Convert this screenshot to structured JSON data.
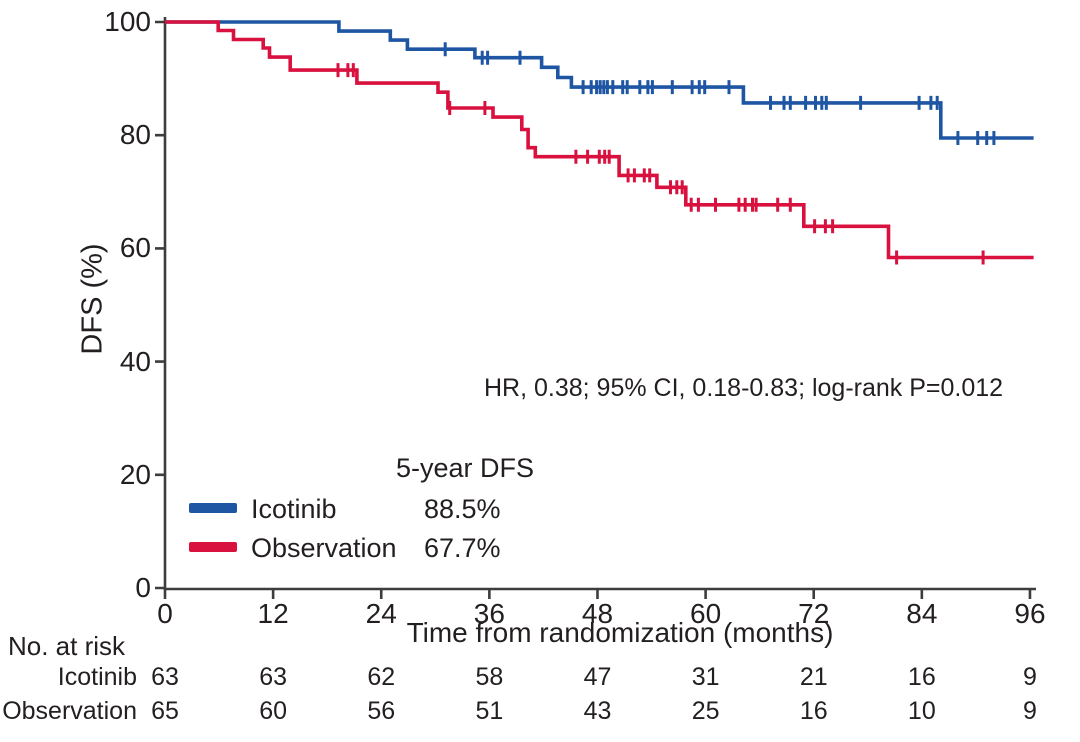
{
  "chart_data": {
    "type": "line",
    "subtype": "kaplan-meier-step",
    "title": "",
    "xlabel": "Time from randomization (months)",
    "ylabel": "DFS (%)",
    "xlim": [
      0,
      96
    ],
    "ylim": [
      0,
      100
    ],
    "x_ticks": [
      0,
      12,
      24,
      36,
      48,
      60,
      72,
      84,
      96
    ],
    "y_ticks": [
      0,
      20,
      40,
      60,
      80,
      100
    ],
    "grid": "off",
    "axis_color": "#3d3d3d",
    "text_color": "#231f20",
    "annotation": "HR, 0.38; 95% CI, 0.18-0.83; log-rank P=0.012",
    "legend": {
      "position": "lower-left",
      "header": "5-year DFS",
      "items": [
        {
          "name": "Icotinib",
          "value": "88.5%",
          "color": "#1e56a4"
        },
        {
          "name": "Observation",
          "value": "67.7%",
          "color": "#d8113f"
        }
      ]
    },
    "series": [
      {
        "name": "Icotinib",
        "color": "#1e56a4",
        "five_year_dfs_pct": 88.5,
        "end_month": 96.4,
        "steps": [
          [
            0,
            100
          ],
          [
            19.3,
            98.4
          ],
          [
            25.0,
            96.8
          ],
          [
            26.9,
            95.2
          ],
          [
            34.4,
            93.7
          ],
          [
            41.8,
            92.0
          ],
          [
            43.6,
            90.2
          ],
          [
            45.1,
            88.5
          ],
          [
            64.2,
            85.7
          ],
          [
            86.1,
            79.5
          ]
        ],
        "censors": [
          [
            31.1,
            95.2
          ],
          [
            35.2,
            93.7
          ],
          [
            35.8,
            93.7
          ],
          [
            39.4,
            93.7
          ],
          [
            46.4,
            88.5
          ],
          [
            47.3,
            88.5
          ],
          [
            47.9,
            88.5
          ],
          [
            48.3,
            88.5
          ],
          [
            48.7,
            88.5
          ],
          [
            49.1,
            88.5
          ],
          [
            49.7,
            88.5
          ],
          [
            50.8,
            88.5
          ],
          [
            51.3,
            88.5
          ],
          [
            52.7,
            88.5
          ],
          [
            53.6,
            88.5
          ],
          [
            54.1,
            88.5
          ],
          [
            56.3,
            88.5
          ],
          [
            58.5,
            88.5
          ],
          [
            59.3,
            88.5
          ],
          [
            59.9,
            88.5
          ],
          [
            62.6,
            88.5
          ],
          [
            67.2,
            85.7
          ],
          [
            68.7,
            85.7
          ],
          [
            69.4,
            85.7
          ],
          [
            71.1,
            85.7
          ],
          [
            72.2,
            85.7
          ],
          [
            72.9,
            85.7
          ],
          [
            73.4,
            85.7
          ],
          [
            77.2,
            85.7
          ],
          [
            83.7,
            85.7
          ],
          [
            85.0,
            85.7
          ],
          [
            85.7,
            85.7
          ],
          [
            88.0,
            79.5
          ],
          [
            90.2,
            79.5
          ],
          [
            91.2,
            79.5
          ],
          [
            92.0,
            79.5
          ]
        ]
      },
      {
        "name": "Observation",
        "color": "#d8113f",
        "five_year_dfs_pct": 67.7,
        "end_month": 96.4,
        "steps": [
          [
            0,
            100
          ],
          [
            5.9,
            98.5
          ],
          [
            7.6,
            96.9
          ],
          [
            10.9,
            95.4
          ],
          [
            11.6,
            93.8
          ],
          [
            13.9,
            91.5
          ],
          [
            21.3,
            89.2
          ],
          [
            30.3,
            87.6
          ],
          [
            31.4,
            84.8
          ],
          [
            36.4,
            83.2
          ],
          [
            39.6,
            81.0
          ],
          [
            40.3,
            77.8
          ],
          [
            41.1,
            76.2
          ],
          [
            50.4,
            72.9
          ],
          [
            54.6,
            70.8
          ],
          [
            57.8,
            67.7
          ],
          [
            70.9,
            63.9
          ],
          [
            80.3,
            58.4
          ]
        ],
        "censors": [
          [
            19.2,
            91.5
          ],
          [
            20.3,
            91.5
          ],
          [
            20.9,
            91.5
          ],
          [
            31.6,
            84.8
          ],
          [
            35.5,
            84.8
          ],
          [
            45.6,
            76.2
          ],
          [
            46.9,
            76.2
          ],
          [
            48.2,
            76.2
          ],
          [
            48.8,
            76.2
          ],
          [
            49.3,
            76.2
          ],
          [
            51.4,
            72.9
          ],
          [
            52.1,
            72.9
          ],
          [
            53.2,
            72.9
          ],
          [
            53.8,
            72.9
          ],
          [
            56.1,
            70.8
          ],
          [
            56.8,
            70.8
          ],
          [
            57.4,
            70.8
          ],
          [
            58.4,
            67.7
          ],
          [
            59.2,
            67.7
          ],
          [
            61.1,
            67.7
          ],
          [
            63.7,
            67.7
          ],
          [
            64.4,
            67.7
          ],
          [
            65.2,
            67.7
          ],
          [
            65.6,
            67.7
          ],
          [
            68.0,
            67.7
          ],
          [
            69.4,
            67.7
          ],
          [
            72.1,
            63.9
          ],
          [
            73.3,
            63.9
          ],
          [
            74.1,
            63.9
          ],
          [
            81.2,
            58.4
          ],
          [
            90.8,
            58.4
          ]
        ]
      }
    ],
    "risk_table": {
      "title": "No. at risk",
      "time_points": [
        0,
        12,
        24,
        36,
        48,
        60,
        72,
        84,
        96
      ],
      "rows": [
        {
          "name": "Icotinib",
          "values": [
            63,
            63,
            62,
            58,
            47,
            31,
            21,
            16,
            9
          ]
        },
        {
          "name": "Observation",
          "values": [
            65,
            60,
            56,
            51,
            43,
            25,
            16,
            10,
            9
          ]
        }
      ]
    }
  }
}
